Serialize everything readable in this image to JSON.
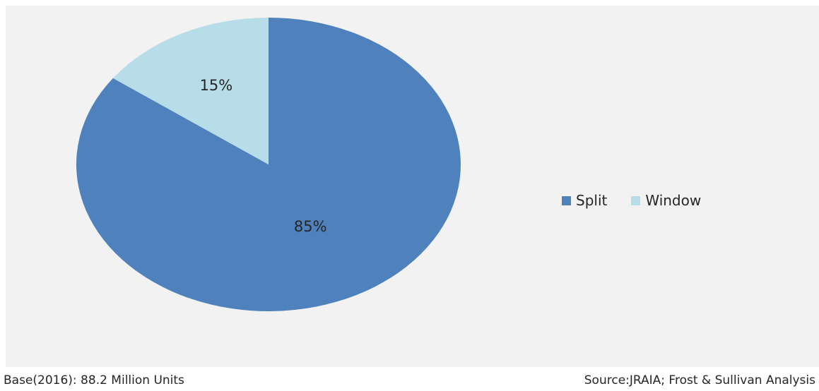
{
  "chart_data": {
    "type": "pie",
    "categories": [
      "Split",
      "Window"
    ],
    "values": [
      85,
      15
    ],
    "value_labels": [
      "85%",
      "15%"
    ],
    "colors": [
      "#4f81bd",
      "#b7dde8"
    ],
    "legend_position": "right",
    "start_angle": "12 o'clock, clockwise"
  },
  "legend": {
    "items": [
      {
        "label": "Split",
        "color": "#4f81bd"
      },
      {
        "label": "Window",
        "color": "#b7dde8"
      }
    ]
  },
  "footer": {
    "base": "Base(2016): 88.2 Million Units",
    "source": "Source:JRAIA; Frost & Sullivan Analysis"
  },
  "colors": {
    "plot_background": "#f2f2f2",
    "text": "#262626"
  }
}
